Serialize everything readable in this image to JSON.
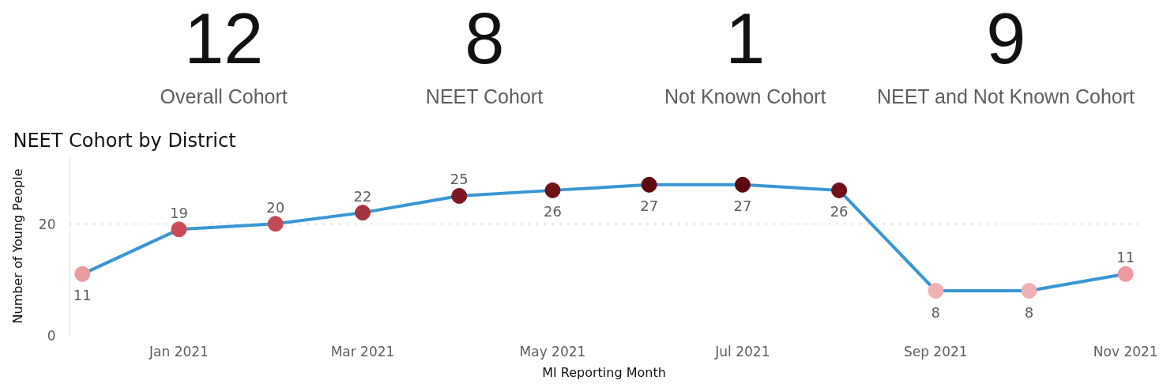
{
  "chart_data": [
    {
      "type": "other",
      "annotations": [
        "12",
        "Overall Cohort",
        "8",
        "NEET Cohort",
        "1",
        "Not Known Cohort",
        "9",
        "NEET and Not Known Cohort"
      ]
    },
    {
      "type": "line",
      "title": "NEET Cohort by District",
      "xlabel": "MI Reporting Month",
      "ylabel": "Number of Young People",
      "x": [
        "2020-12",
        "2021-01",
        "2021-02",
        "2021-03",
        "2021-04",
        "2021-05",
        "2021-06",
        "2021-07",
        "2021-08",
        "2021-09",
        "2021-10",
        "2021-11"
      ],
      "series": [
        {
          "color": "#3a96d4",
          "colors": [
            "#eb9aa0",
            "#cc4b56",
            "#c34956",
            "#a3333f",
            "#7b1824",
            "#701019",
            "#600611",
            "#600611",
            "#701019",
            "#f0b1b4",
            "#f0b1b4",
            "#eb9aa0"
          ],
          "values": [
            11,
            19,
            20,
            22,
            25,
            26,
            27,
            27,
            26,
            8,
            8,
            11
          ]
        }
      ],
      "xlim": [
        "2020-11-27",
        "2021-11-05"
      ],
      "xticks": [
        {
          "value": "2021-01",
          "label": "Jan 2021"
        },
        {
          "value": "2021-03",
          "label": "Mar 2021"
        },
        {
          "value": "2021-05",
          "label": "May 2021"
        },
        {
          "value": "2021-07",
          "label": "Jul 2021"
        },
        {
          "value": "2021-09",
          "label": "Sep 2021"
        },
        {
          "value": "2021-11",
          "label": "Nov 2021"
        }
      ],
      "ylim": [
        0,
        32
      ],
      "yticks": [
        0,
        20
      ],
      "grid": "y",
      "marker": "circle",
      "line_style": "solid",
      "data_labels": true
    }
  ]
}
